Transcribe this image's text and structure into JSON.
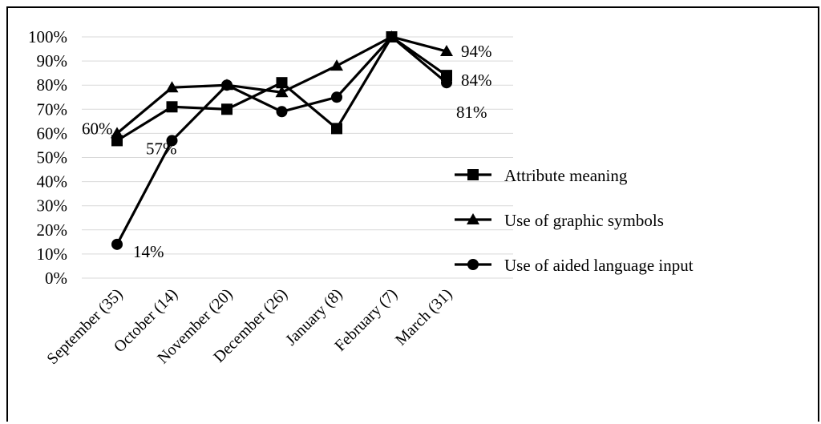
{
  "chart_data": {
    "type": "line",
    "categories": [
      "September (35)",
      "October (14)",
      "November (20)",
      "December (26)",
      "January (8)",
      "February (7)",
      "March (31)"
    ],
    "ylim": [
      0,
      100
    ],
    "yticks": [
      "0%",
      "10%",
      "20%",
      "30%",
      "40%",
      "50%",
      "60%",
      "70%",
      "80%",
      "90%",
      "100%"
    ],
    "grid": true,
    "legend_position": "right",
    "series": [
      {
        "name": "Attribute meaning",
        "marker": "square",
        "values": [
          57,
          71,
          70,
          81,
          62,
          100,
          84
        ]
      },
      {
        "name": "Use of graphic symbols",
        "marker": "triangle",
        "values": [
          60,
          79,
          80,
          77,
          88,
          100,
          94
        ]
      },
      {
        "name": "Use of aided language input",
        "marker": "circle",
        "values": [
          14,
          57,
          80,
          69,
          75,
          100,
          81
        ]
      }
    ],
    "data_labels": [
      {
        "series": 1,
        "index": 0,
        "text": "60%"
      },
      {
        "series": 0,
        "index": 0,
        "text": "57%"
      },
      {
        "series": 2,
        "index": 0,
        "text": "14%"
      },
      {
        "series": 1,
        "index": 6,
        "text": "94%"
      },
      {
        "series": 0,
        "index": 6,
        "text": "84%"
      },
      {
        "series": 2,
        "index": 6,
        "text": "81%"
      }
    ],
    "color": "#000000"
  }
}
